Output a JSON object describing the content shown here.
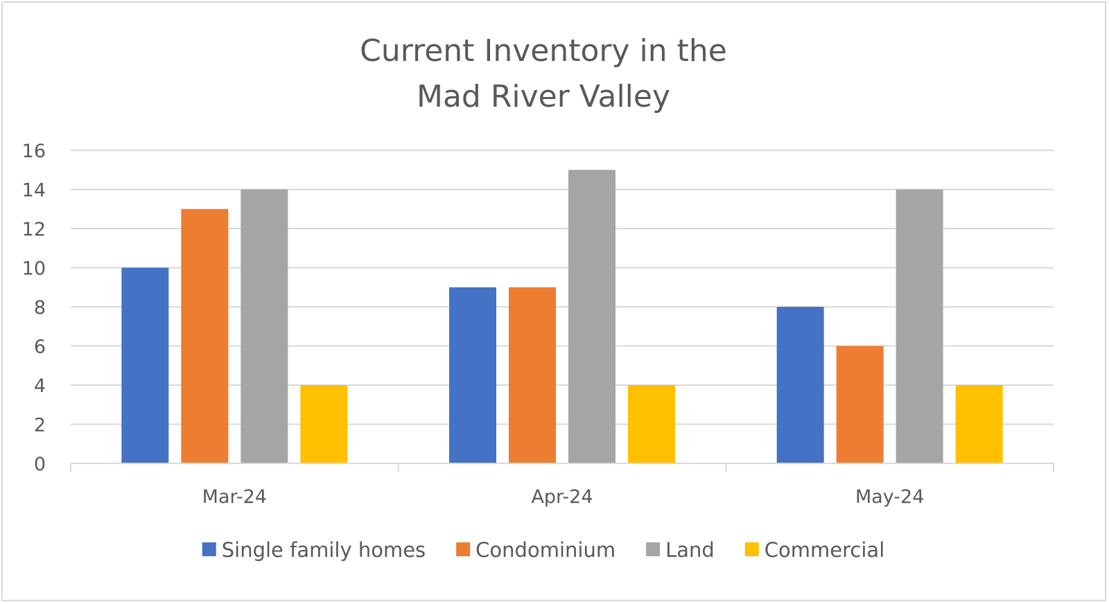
{
  "chart_data": {
    "type": "bar",
    "title_lines": [
      "Current Inventory in the",
      "Mad River Valley"
    ],
    "categories": [
      "Mar-24",
      "Apr-24",
      "May-24"
    ],
    "series": [
      {
        "name": "Single family homes",
        "color": "#4472C4",
        "values": [
          10,
          9,
          8
        ]
      },
      {
        "name": "Condominium",
        "color": "#ED7D31",
        "values": [
          13,
          9,
          6
        ]
      },
      {
        "name": "Land",
        "color": "#A5A5A5",
        "values": [
          14,
          15,
          14
        ]
      },
      {
        "name": "Commercial",
        "color": "#FFC000",
        "values": [
          4,
          4,
          4
        ]
      }
    ],
    "ylim": [
      0,
      16
    ],
    "ytick_step": 2,
    "yticks": [
      "0",
      "2",
      "4",
      "6",
      "8",
      "10",
      "12",
      "14",
      "16"
    ],
    "xlabel": "",
    "ylabel": "",
    "grid": true,
    "legend_position": "bottom"
  }
}
